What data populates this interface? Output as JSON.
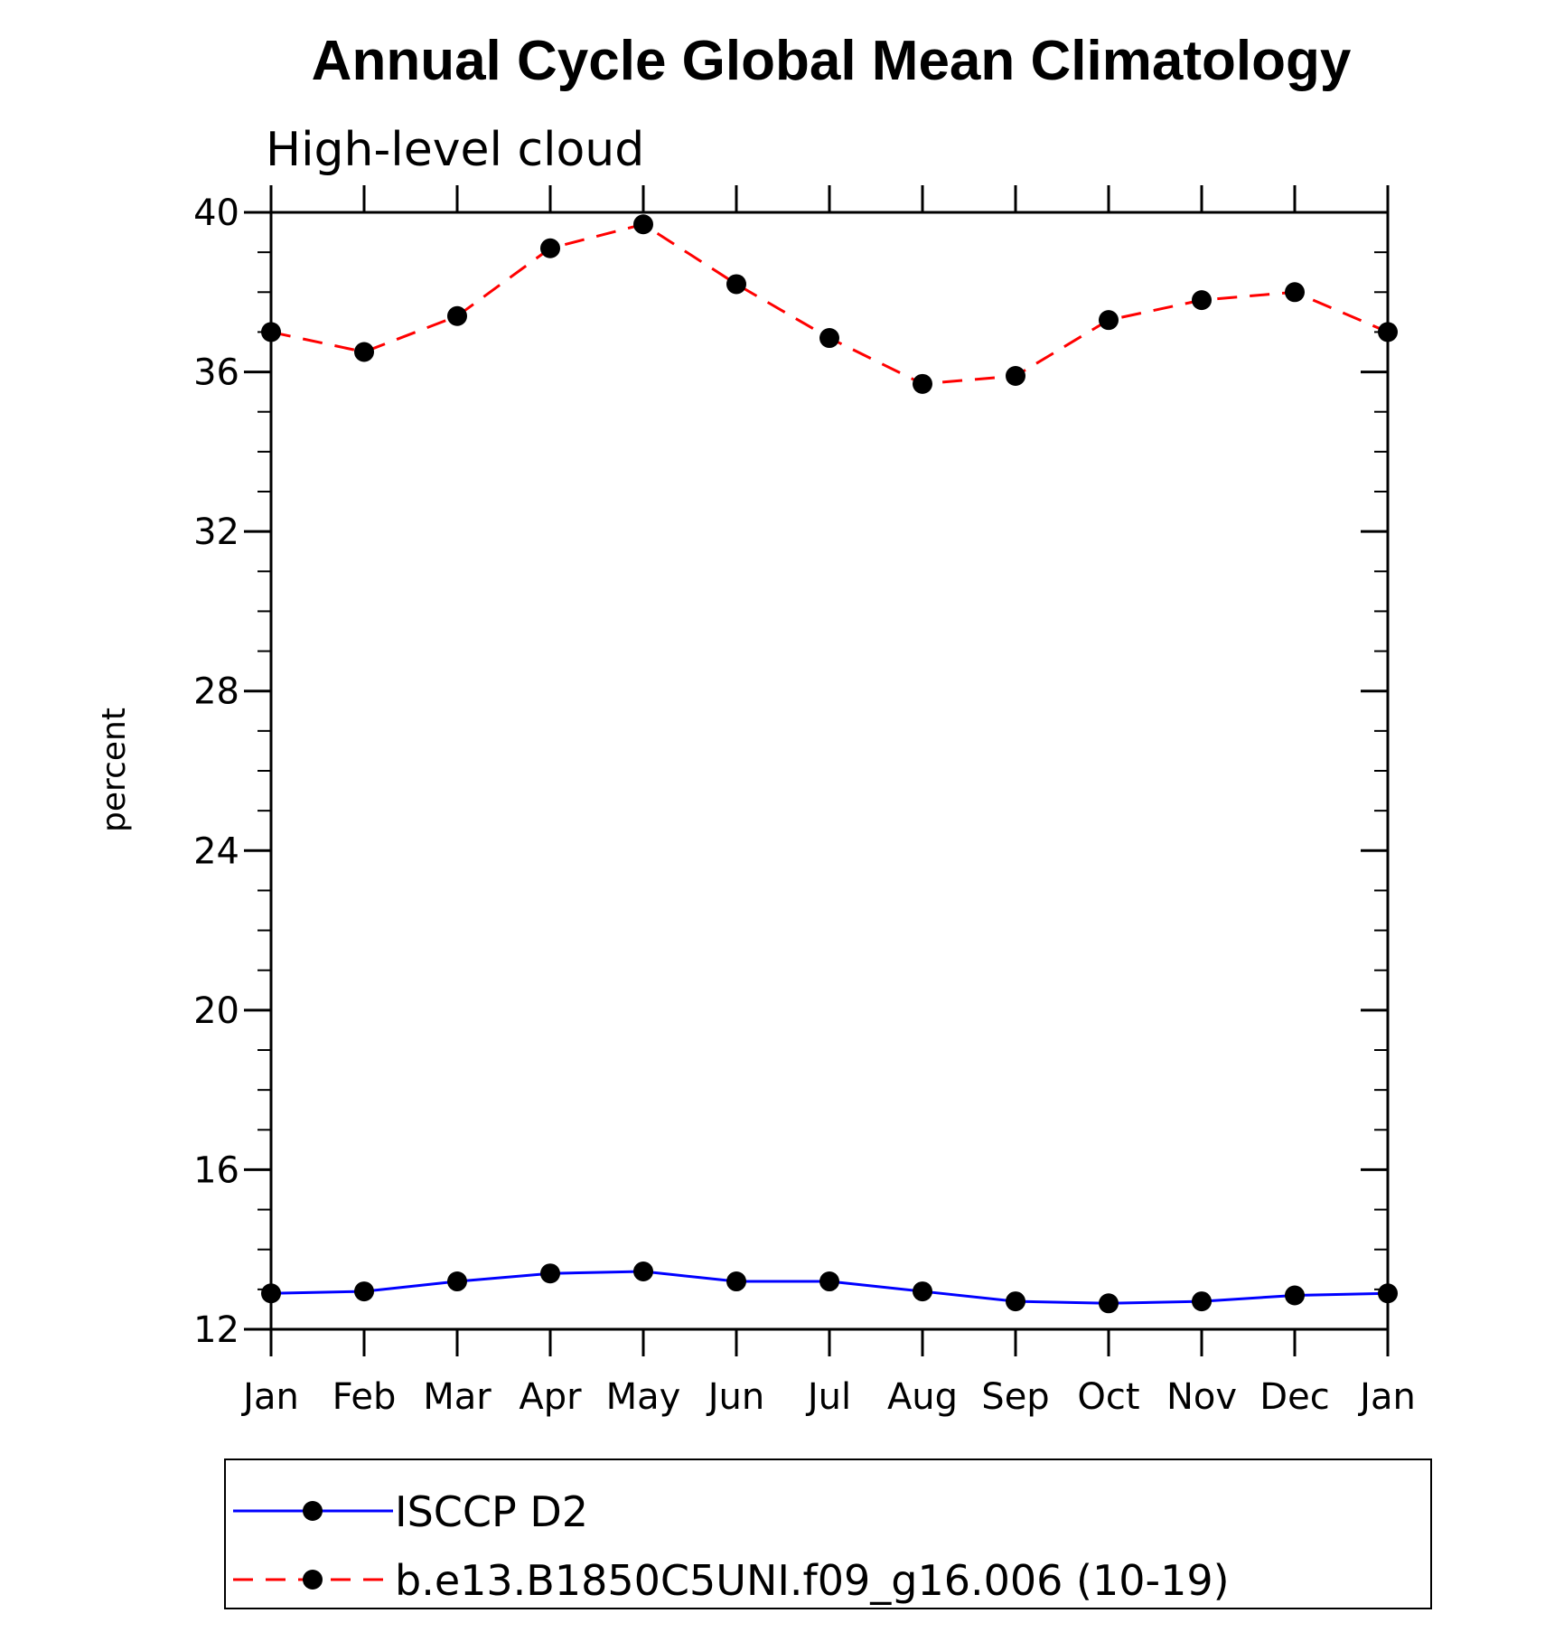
{
  "chart_data": {
    "type": "line",
    "title": "Annual Cycle Global Mean Climatology",
    "subtitle": "High-level cloud",
    "xlabel": "",
    "ylabel": "percent",
    "categories": [
      "Jan",
      "Feb",
      "Mar",
      "Apr",
      "May",
      "Jun",
      "Jul",
      "Aug",
      "Sep",
      "Oct",
      "Nov",
      "Dec",
      "Jan"
    ],
    "ylim": [
      12,
      40
    ],
    "yticks": [
      12,
      16,
      20,
      24,
      28,
      32,
      36,
      40
    ],
    "yminor_step": 1,
    "grid": false,
    "legend_position": "bottom",
    "series": [
      {
        "name": "ISCCP D2",
        "color": "#0000ff",
        "style": "solid",
        "marker": "circle",
        "values": [
          12.9,
          12.95,
          13.2,
          13.4,
          13.45,
          13.2,
          13.2,
          12.95,
          12.7,
          12.65,
          12.7,
          12.85,
          12.9
        ]
      },
      {
        "name": "b.e13.B1850C5UNI.f09_g16.006 (10-19)",
        "color": "#ff0000",
        "style": "dashed",
        "marker": "circle",
        "values": [
          37.0,
          36.5,
          37.4,
          39.1,
          39.7,
          38.2,
          36.85,
          35.7,
          35.9,
          37.3,
          37.8,
          38.0,
          37.0
        ]
      }
    ]
  }
}
